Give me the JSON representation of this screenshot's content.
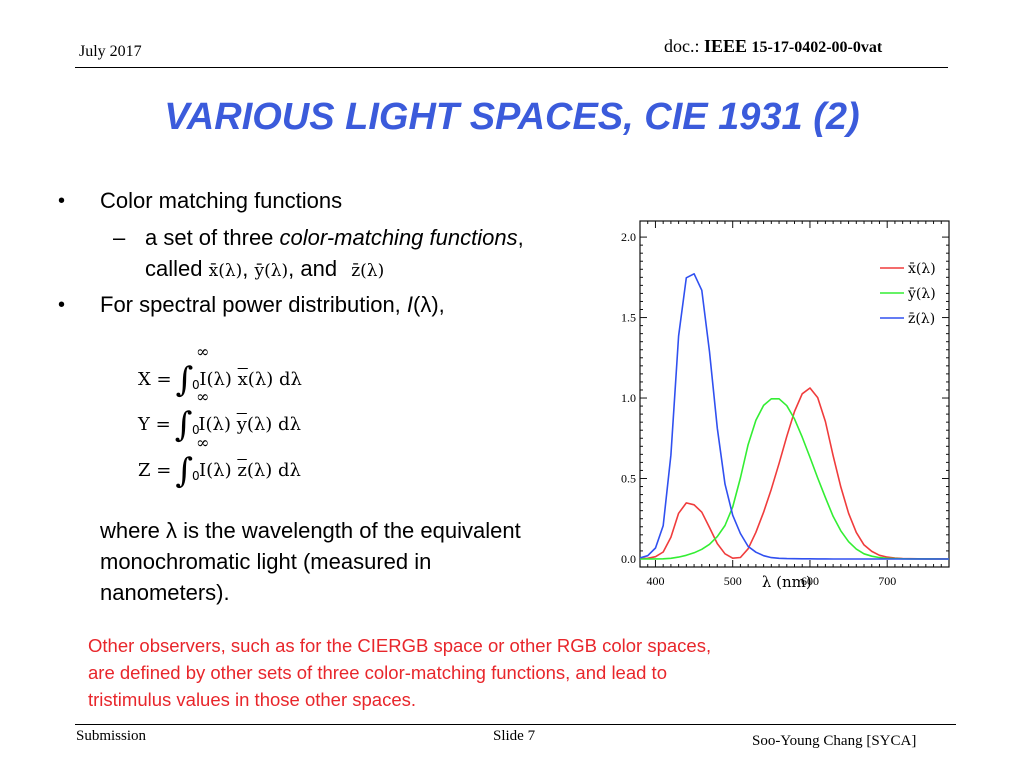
{
  "header": {
    "date": "July 2017",
    "doc_prefix": "doc.: ",
    "doc_org": "IEEE",
    "doc_number": "15-17-0402-00-0vat"
  },
  "title": "VARIOUS LIGHT SPACES, CIE 1931 (2)",
  "bullets": {
    "b1": "Color matching functions",
    "b1_sub_prefix": "a set of three ",
    "b1_sub_italic": "color-matching functions",
    "b1_sub_suffix": ",",
    "b1_called": "called",
    "comma": ",",
    "and": ", and",
    "b2_prefix": "For spectral power distribution, ",
    "b2_I": "I",
    "b2_lambda": "(λ",
    "b2_suffix": "),"
  },
  "cmf_names": {
    "x": "x̄(λ)",
    "y": "ȳ(λ)",
    "z": "z̄(λ)"
  },
  "equations": [
    {
      "lhs": "X =",
      "upper": "∞",
      "lower": "0",
      "integrand_pre": "I(λ) ",
      "bar": "x",
      "integrand_post": "(λ) dλ"
    },
    {
      "lhs": "Y =",
      "upper": "∞",
      "lower": "0",
      "integrand_pre": "I(λ) ",
      "bar": "y",
      "integrand_post": "(λ) dλ"
    },
    {
      "lhs": "Z =",
      "upper": "∞",
      "lower": "0",
      "integrand_pre": "I(λ) ",
      "bar": "z",
      "integrand_post": "(λ) dλ"
    }
  ],
  "where_text": {
    "line1": "where λ is the wavelength of the equivalent",
    "line2": "monochromatic light (measured in",
    "line3": "nanometers)."
  },
  "note": {
    "line1": "Other observers, such as for the CIERGB space or other RGB color spaces,",
    "line2": "are defined by other sets of three color-matching functions, and lead to",
    "line3": "tristimulus values in those other spaces."
  },
  "footer": {
    "submission": "Submission",
    "slide": "Slide 7",
    "author": "Soo-Young Chang [SYCA]"
  },
  "colors": {
    "title": "#3b5bdb",
    "note": "#e8262b",
    "x_bar": "#f03c3c",
    "y_bar": "#33ee33",
    "z_bar": "#3050f0"
  },
  "chart_data": {
    "type": "line",
    "xlabel": "λ (nm)",
    "ylabel": "",
    "xlim": [
      380,
      780
    ],
    "ylim": [
      -0.05,
      2.1
    ],
    "xticks": [
      400,
      500,
      600,
      700
    ],
    "yticks": [
      0.0,
      0.5,
      1.0,
      1.5,
      2.0
    ],
    "ytick_labels": [
      "0.0",
      "0.5",
      "1.0",
      "1.5",
      "2.0"
    ],
    "legend_position": "top-right",
    "x": [
      380,
      390,
      400,
      410,
      420,
      430,
      440,
      450,
      460,
      470,
      480,
      490,
      500,
      510,
      520,
      530,
      540,
      550,
      560,
      570,
      580,
      590,
      600,
      610,
      620,
      630,
      640,
      650,
      660,
      670,
      680,
      690,
      700,
      710,
      720,
      730,
      740,
      750,
      760,
      770,
      780
    ],
    "series": [
      {
        "name": "x̄(λ)",
        "color": "#f03c3c",
        "values": [
          0.0014,
          0.0042,
          0.0143,
          0.0435,
          0.1344,
          0.2839,
          0.3483,
          0.3362,
          0.2908,
          0.1954,
          0.0956,
          0.032,
          0.0049,
          0.0093,
          0.0633,
          0.1655,
          0.2904,
          0.4334,
          0.5945,
          0.7621,
          0.9163,
          1.0263,
          1.0622,
          1.0026,
          0.8544,
          0.6424,
          0.4479,
          0.2835,
          0.1649,
          0.0874,
          0.0468,
          0.0227,
          0.0114,
          0.0058,
          0.0029,
          0.0014,
          0.0007,
          0.0003,
          0.0002,
          0.0001,
          0.0
        ]
      },
      {
        "name": "ȳ(λ)",
        "color": "#33ee33",
        "values": [
          0.0,
          0.0001,
          0.0004,
          0.0012,
          0.004,
          0.0116,
          0.023,
          0.038,
          0.06,
          0.091,
          0.139,
          0.208,
          0.323,
          0.503,
          0.71,
          0.862,
          0.954,
          0.995,
          0.995,
          0.952,
          0.87,
          0.757,
          0.631,
          0.503,
          0.381,
          0.265,
          0.175,
          0.107,
          0.061,
          0.032,
          0.017,
          0.0082,
          0.0041,
          0.0021,
          0.001,
          0.0005,
          0.0002,
          0.0001,
          0.0001,
          0.0,
          0.0
        ]
      },
      {
        "name": "z̄(λ)",
        "color": "#3050f0",
        "values": [
          0.0065,
          0.0201,
          0.0679,
          0.2074,
          0.6456,
          1.3856,
          1.7471,
          1.7721,
          1.6692,
          1.2876,
          0.813,
          0.4652,
          0.272,
          0.1582,
          0.0782,
          0.0422,
          0.0203,
          0.0087,
          0.0039,
          0.0021,
          0.0017,
          0.0011,
          0.0008,
          0.0003,
          0.0002,
          0.0,
          0.0,
          0.0,
          0.0,
          0.0,
          0.0,
          0.0,
          0.0,
          0.0,
          0.0,
          0.0,
          0.0,
          0.0,
          0.0,
          0.0,
          0.0
        ]
      }
    ]
  }
}
